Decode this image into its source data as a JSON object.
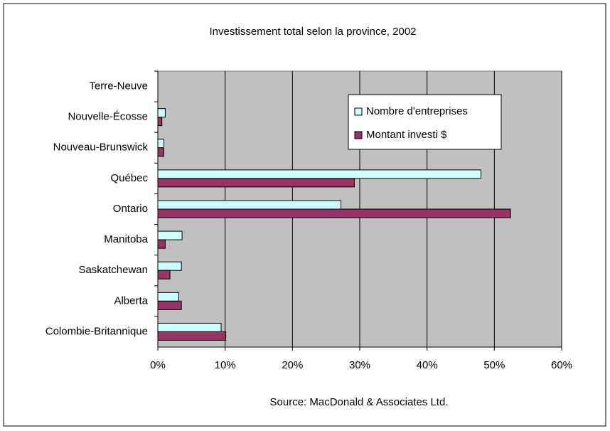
{
  "chart_data": {
    "type": "hbar",
    "title": "Investissement total selon la province, 2002",
    "source": "Source:  MacDonald & Associates Ltd.",
    "categories": [
      "Terre-Neuve",
      "Nouvelle-Écosse",
      "Nouveau-Brunswick",
      "Québec",
      "Ontario",
      "Manitoba",
      "Saskatchewan",
      "Alberta",
      "Colombie-Britannique"
    ],
    "series": [
      {
        "name": "Nombre d'entreprises",
        "color": "#ccffff",
        "values": [
          0,
          1.1,
          0.9,
          48,
          27.2,
          3.6,
          3.5,
          3.1,
          9.4
        ]
      },
      {
        "name": "Montant investi $",
        "color": "#993366",
        "values": [
          0,
          0.6,
          0.9,
          29.2,
          52.4,
          1.1,
          1.8,
          3.5,
          10.1
        ]
      }
    ],
    "xlim": [
      0,
      60
    ],
    "xticks": [
      {
        "value": 0,
        "label": "0%"
      },
      {
        "value": 10,
        "label": "10%"
      },
      {
        "value": 20,
        "label": "20%"
      },
      {
        "value": 30,
        "label": "30%"
      },
      {
        "value": 40,
        "label": "40%"
      },
      {
        "value": 50,
        "label": "50%"
      },
      {
        "value": 60,
        "label": "60%"
      }
    ],
    "grid": true,
    "plot_background": "#c0c0c0"
  }
}
